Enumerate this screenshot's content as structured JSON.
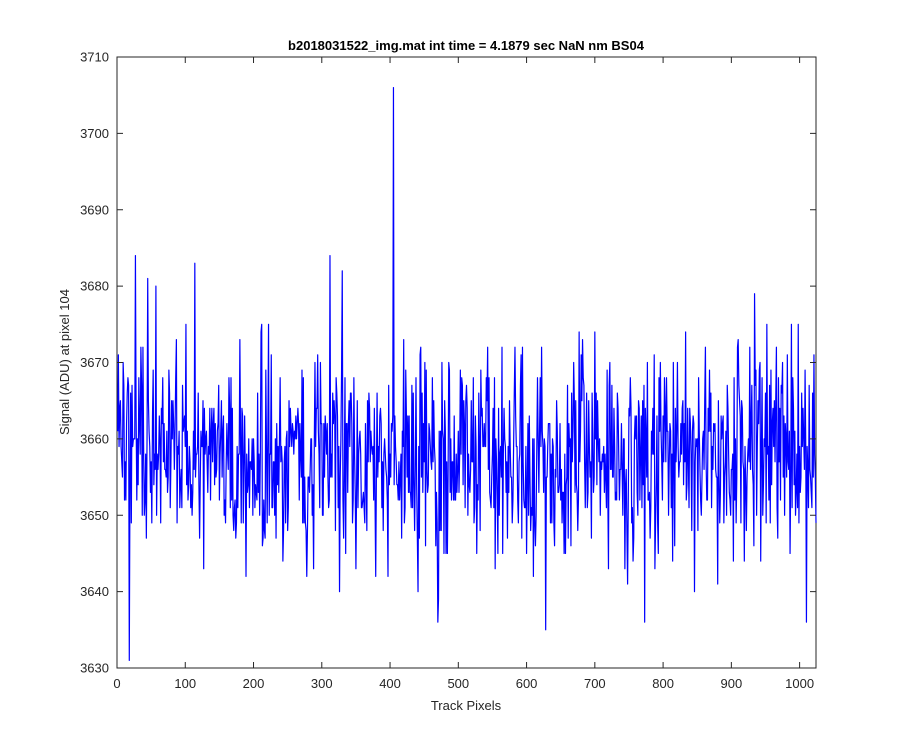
{
  "chart_data": {
    "type": "line",
    "title": "b2018031522_img.mat int time = 4.1879 sec  NaN nm BS04",
    "xlabel": "Track Pixels",
    "ylabel": "Signal (ADU) at pixel 104",
    "xlim": [
      0,
      1024
    ],
    "ylim": [
      3630,
      3710
    ],
    "xticks": [
      0,
      100,
      200,
      300,
      400,
      500,
      600,
      700,
      800,
      900,
      1000
    ],
    "yticks": [
      3630,
      3640,
      3650,
      3660,
      3670,
      3680,
      3690,
      3700,
      3710
    ],
    "grid": false,
    "series": [
      {
        "color": "#0000ff",
        "x_start": 1,
        "x_step": 1,
        "mean": 3658,
        "noise_sd": 7,
        "seed": 104,
        "notable_points": [
          {
            "x": 18,
            "y": 3631
          },
          {
            "x": 27,
            "y": 3684
          },
          {
            "x": 45,
            "y": 3681
          },
          {
            "x": 114,
            "y": 3683
          },
          {
            "x": 312,
            "y": 3684
          },
          {
            "x": 330,
            "y": 3682
          },
          {
            "x": 405,
            "y": 3706
          },
          {
            "x": 470,
            "y": 3636
          },
          {
            "x": 628,
            "y": 3635
          },
          {
            "x": 773,
            "y": 3636
          },
          {
            "x": 1010,
            "y": 3636
          }
        ]
      }
    ]
  }
}
